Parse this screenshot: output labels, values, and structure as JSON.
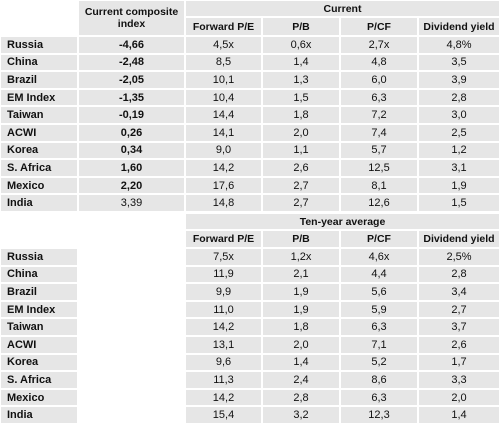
{
  "current": {
    "composite_header": "Current composite index",
    "group": "Current",
    "columns": [
      "Forward P/E",
      "P/B",
      "P/CF",
      "Dividend yield"
    ],
    "rows": [
      [
        "Russia",
        "-4,66",
        "4,5x",
        "0,6x",
        "2,7x",
        "4,8%"
      ],
      [
        "China",
        "-2,48",
        "8,5",
        "1,4",
        "4,8",
        "3,5"
      ],
      [
        "Brazil",
        "-2,05",
        "10,1",
        "1,3",
        "6,0",
        "3,9"
      ],
      [
        "EM Index",
        "-1,35",
        "10,4",
        "1,5",
        "6,3",
        "2,8"
      ],
      [
        "Taiwan",
        "-0,19",
        "14,4",
        "1,8",
        "7,2",
        "3,0"
      ],
      [
        "ACWI",
        "0,26",
        "14,1",
        "2,0",
        "7,4",
        "2,5"
      ],
      [
        "Korea",
        "0,34",
        "9,0",
        "1,1",
        "5,7",
        "1,2"
      ],
      [
        "S. Africa",
        "1,60",
        "14,2",
        "2,6",
        "12,5",
        "3,1"
      ],
      [
        "Mexico",
        "2,20",
        "17,6",
        "2,7",
        "8,1",
        "1,9"
      ],
      [
        "India",
        "3,39",
        "14,8",
        "2,7",
        "12,6",
        "1,5"
      ]
    ]
  },
  "ten_year": {
    "group": "Ten-year average",
    "columns": [
      "Forward P/E",
      "P/B",
      "P/CF",
      "Dividend yield"
    ],
    "rows": [
      [
        "Russia",
        "7,5x",
        "1,2x",
        "4,6x",
        "2,5%"
      ],
      [
        "China",
        "11,9",
        "2,1",
        "4,4",
        "2,8"
      ],
      [
        "Brazil",
        "9,9",
        "1,9",
        "5,6",
        "3,4"
      ],
      [
        "EM Index",
        "11,0",
        "1,9",
        "5,9",
        "2,7"
      ],
      [
        "Taiwan",
        "14,2",
        "1,8",
        "6,3",
        "3,7"
      ],
      [
        "ACWI",
        "13,1",
        "2,0",
        "7,1",
        "2,6"
      ],
      [
        "Korea",
        "9,6",
        "1,4",
        "5,2",
        "1,7"
      ],
      [
        "S. Africa",
        "11,3",
        "2,4",
        "8,6",
        "3,3"
      ],
      [
        "Mexico",
        "14,2",
        "2,8",
        "6,3",
        "2,0"
      ],
      [
        "India",
        "15,4",
        "3,2",
        "12,3",
        "1,4"
      ]
    ]
  }
}
